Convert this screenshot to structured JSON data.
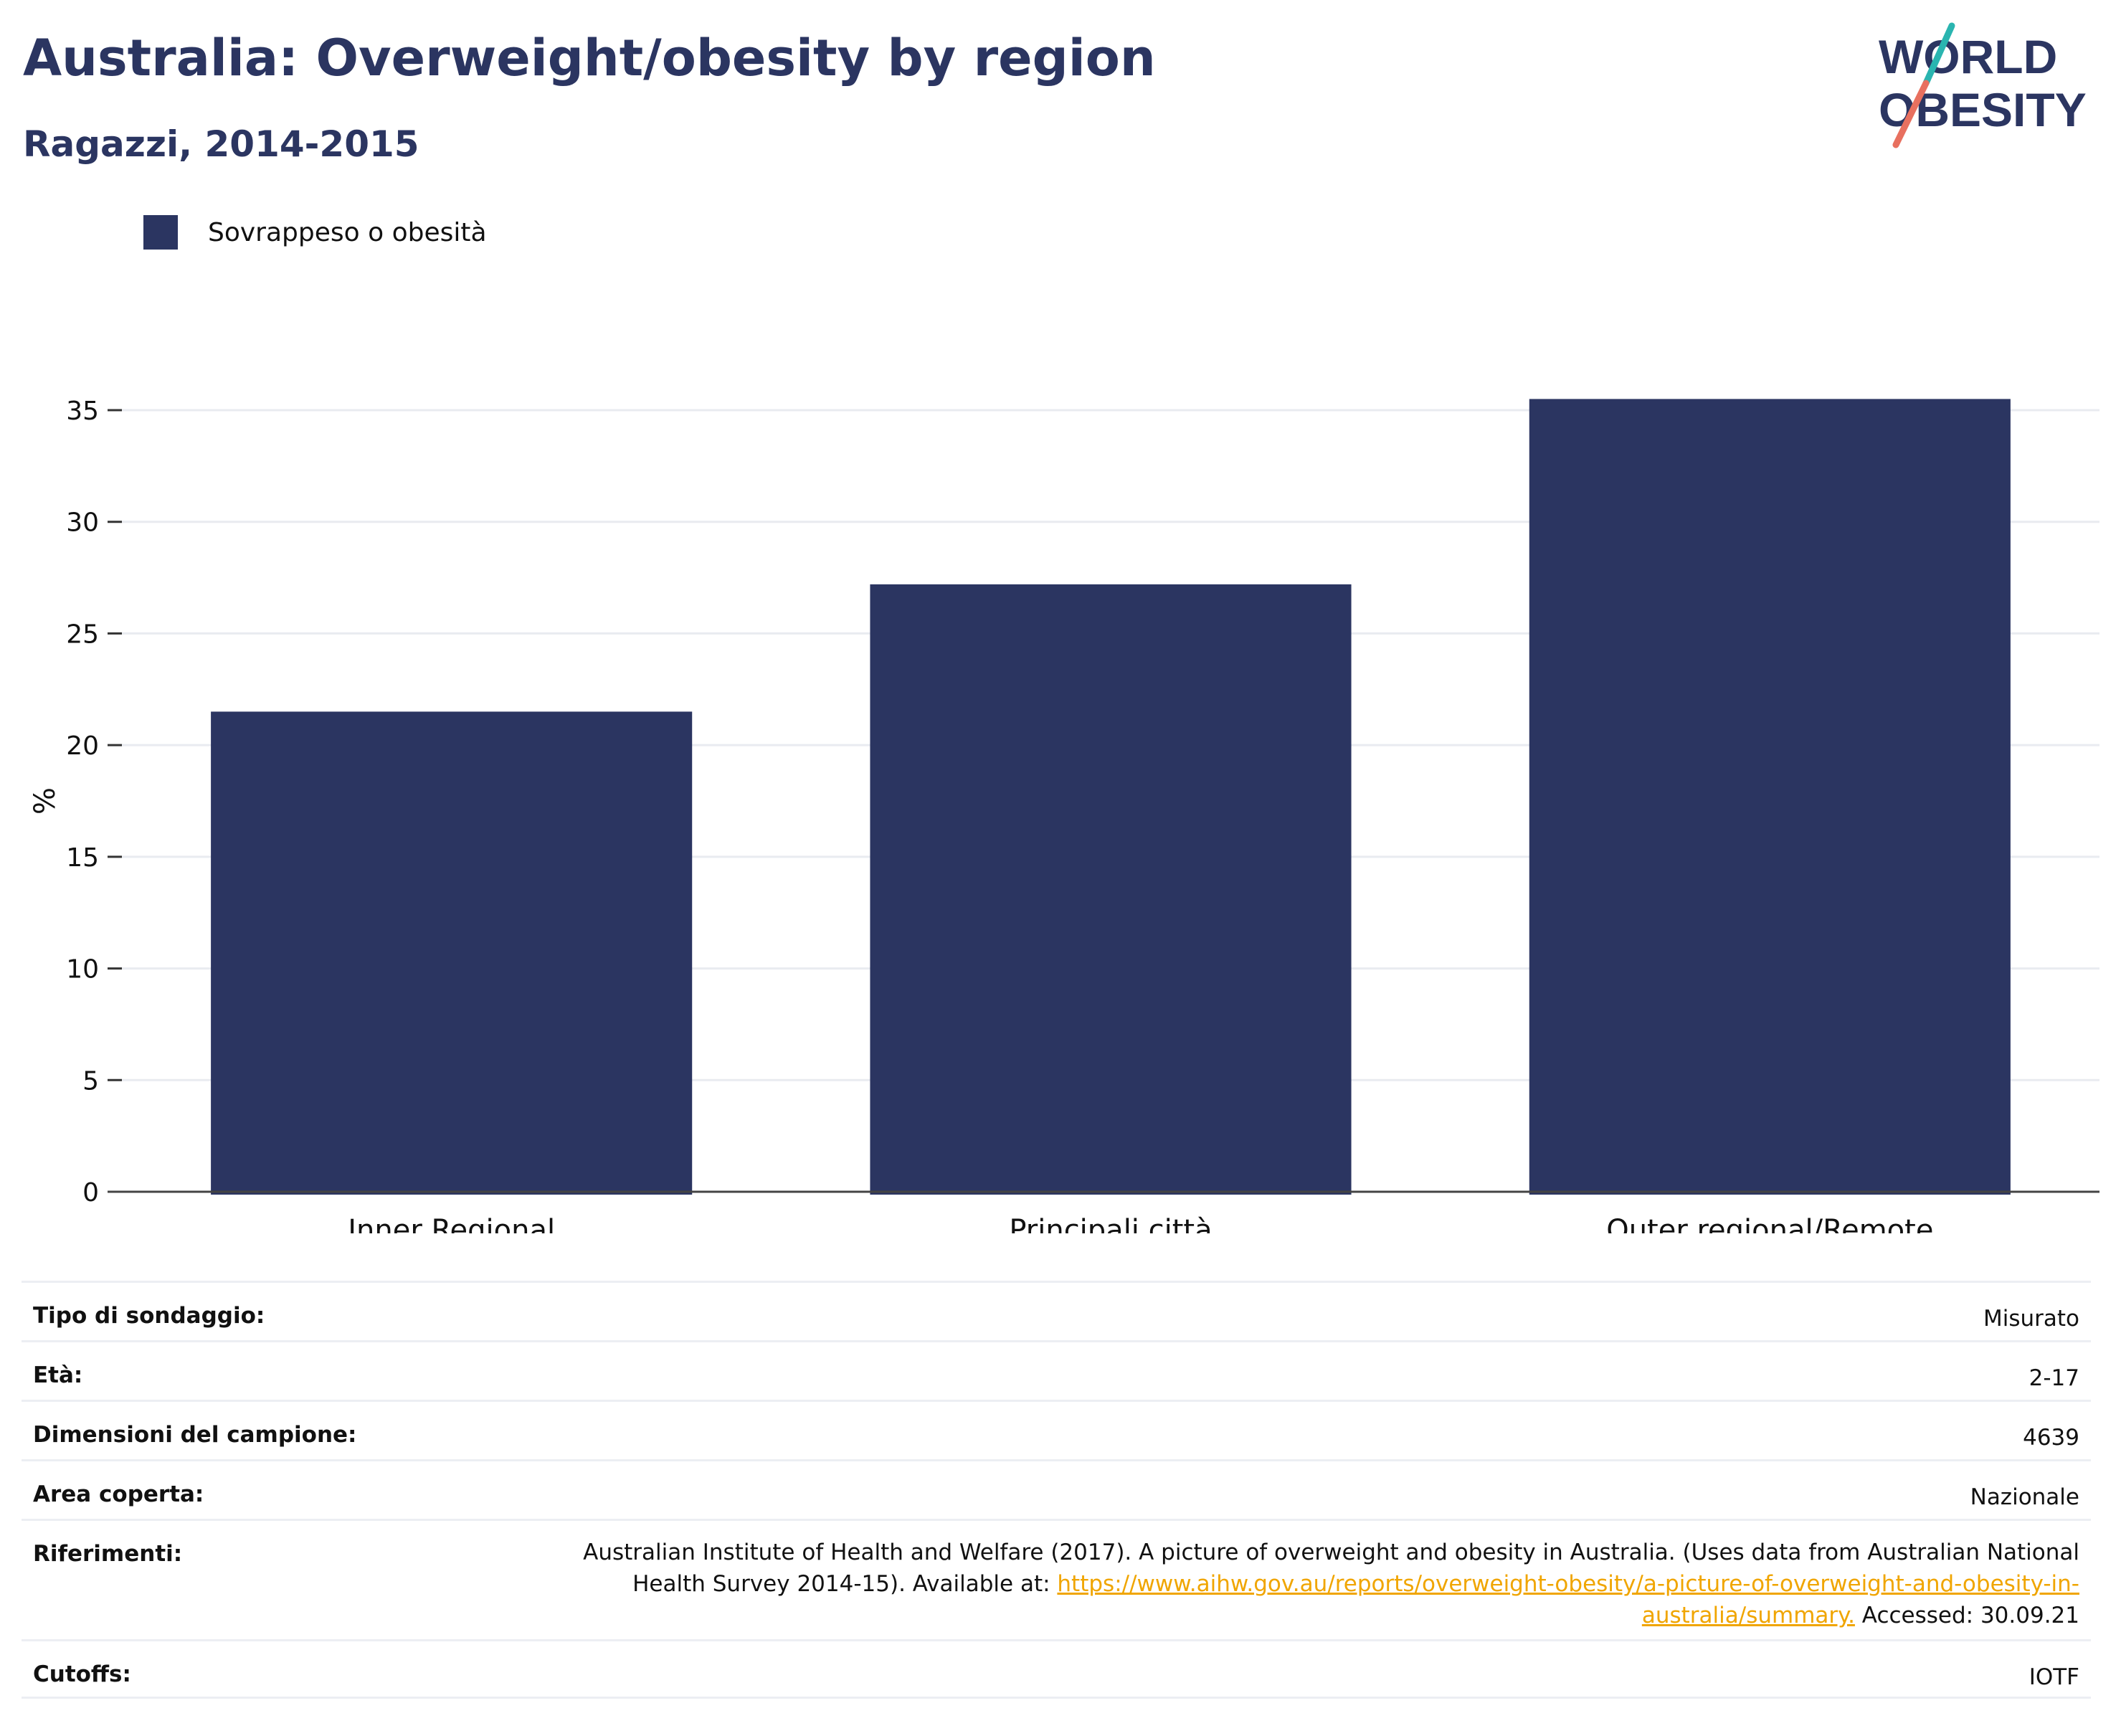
{
  "header": {
    "title": "Australia: Overweight/obesity by region",
    "subtitle": "Ragazzi, 2014-2015"
  },
  "logo": {
    "line1": "WORLD",
    "line2": "OBESITY",
    "colors": {
      "text": "#2b3561",
      "slash_top": "#2ab5b0",
      "slash_bottom": "#e8705f"
    }
  },
  "legend": {
    "label": "Sovrappeso o obesità",
    "color": "#2b3561"
  },
  "chart_data": {
    "type": "bar",
    "categories": [
      "Inner Regional",
      "Principali città",
      "Outer regional/Remote"
    ],
    "series": [
      {
        "name": "Sovrappeso o obesità",
        "values": [
          21.5,
          27.2,
          35.5
        ],
        "color": "#2b3561"
      }
    ],
    "ylabel": "%",
    "xlabel": "",
    "ylim": [
      0,
      35
    ],
    "yticks": [
      "0",
      "5",
      "10",
      "15",
      "20",
      "25",
      "30",
      "35"
    ],
    "grid": true,
    "legend_position": "top-left"
  },
  "info": {
    "rows": [
      {
        "key": "Tipo di sondaggio:",
        "value": "Misurato"
      },
      {
        "key": "Età:",
        "value": "2-17"
      },
      {
        "key": "Dimensioni del campione:",
        "value": "4639"
      },
      {
        "key": "Area coperta:",
        "value": "Nazionale"
      },
      {
        "key": "Riferimenti:",
        "value_line1": "Australian Institute of Health and Welfare (2017). A picture of overweight and obesity in Australia. (Uses data from Australian National",
        "value_line2_pre": "Health Survey 2014-15). Available at: ",
        "link_part1": "https://www.aihw.gov.au/reports/overweight-obesity/a-picture-of-overweight-and-obesity-in-",
        "link_part2": "australia/summary.",
        "value_post": " Accessed: 30.09.21"
      },
      {
        "key": "Cutoffs:",
        "value": "IOTF"
      }
    ]
  }
}
